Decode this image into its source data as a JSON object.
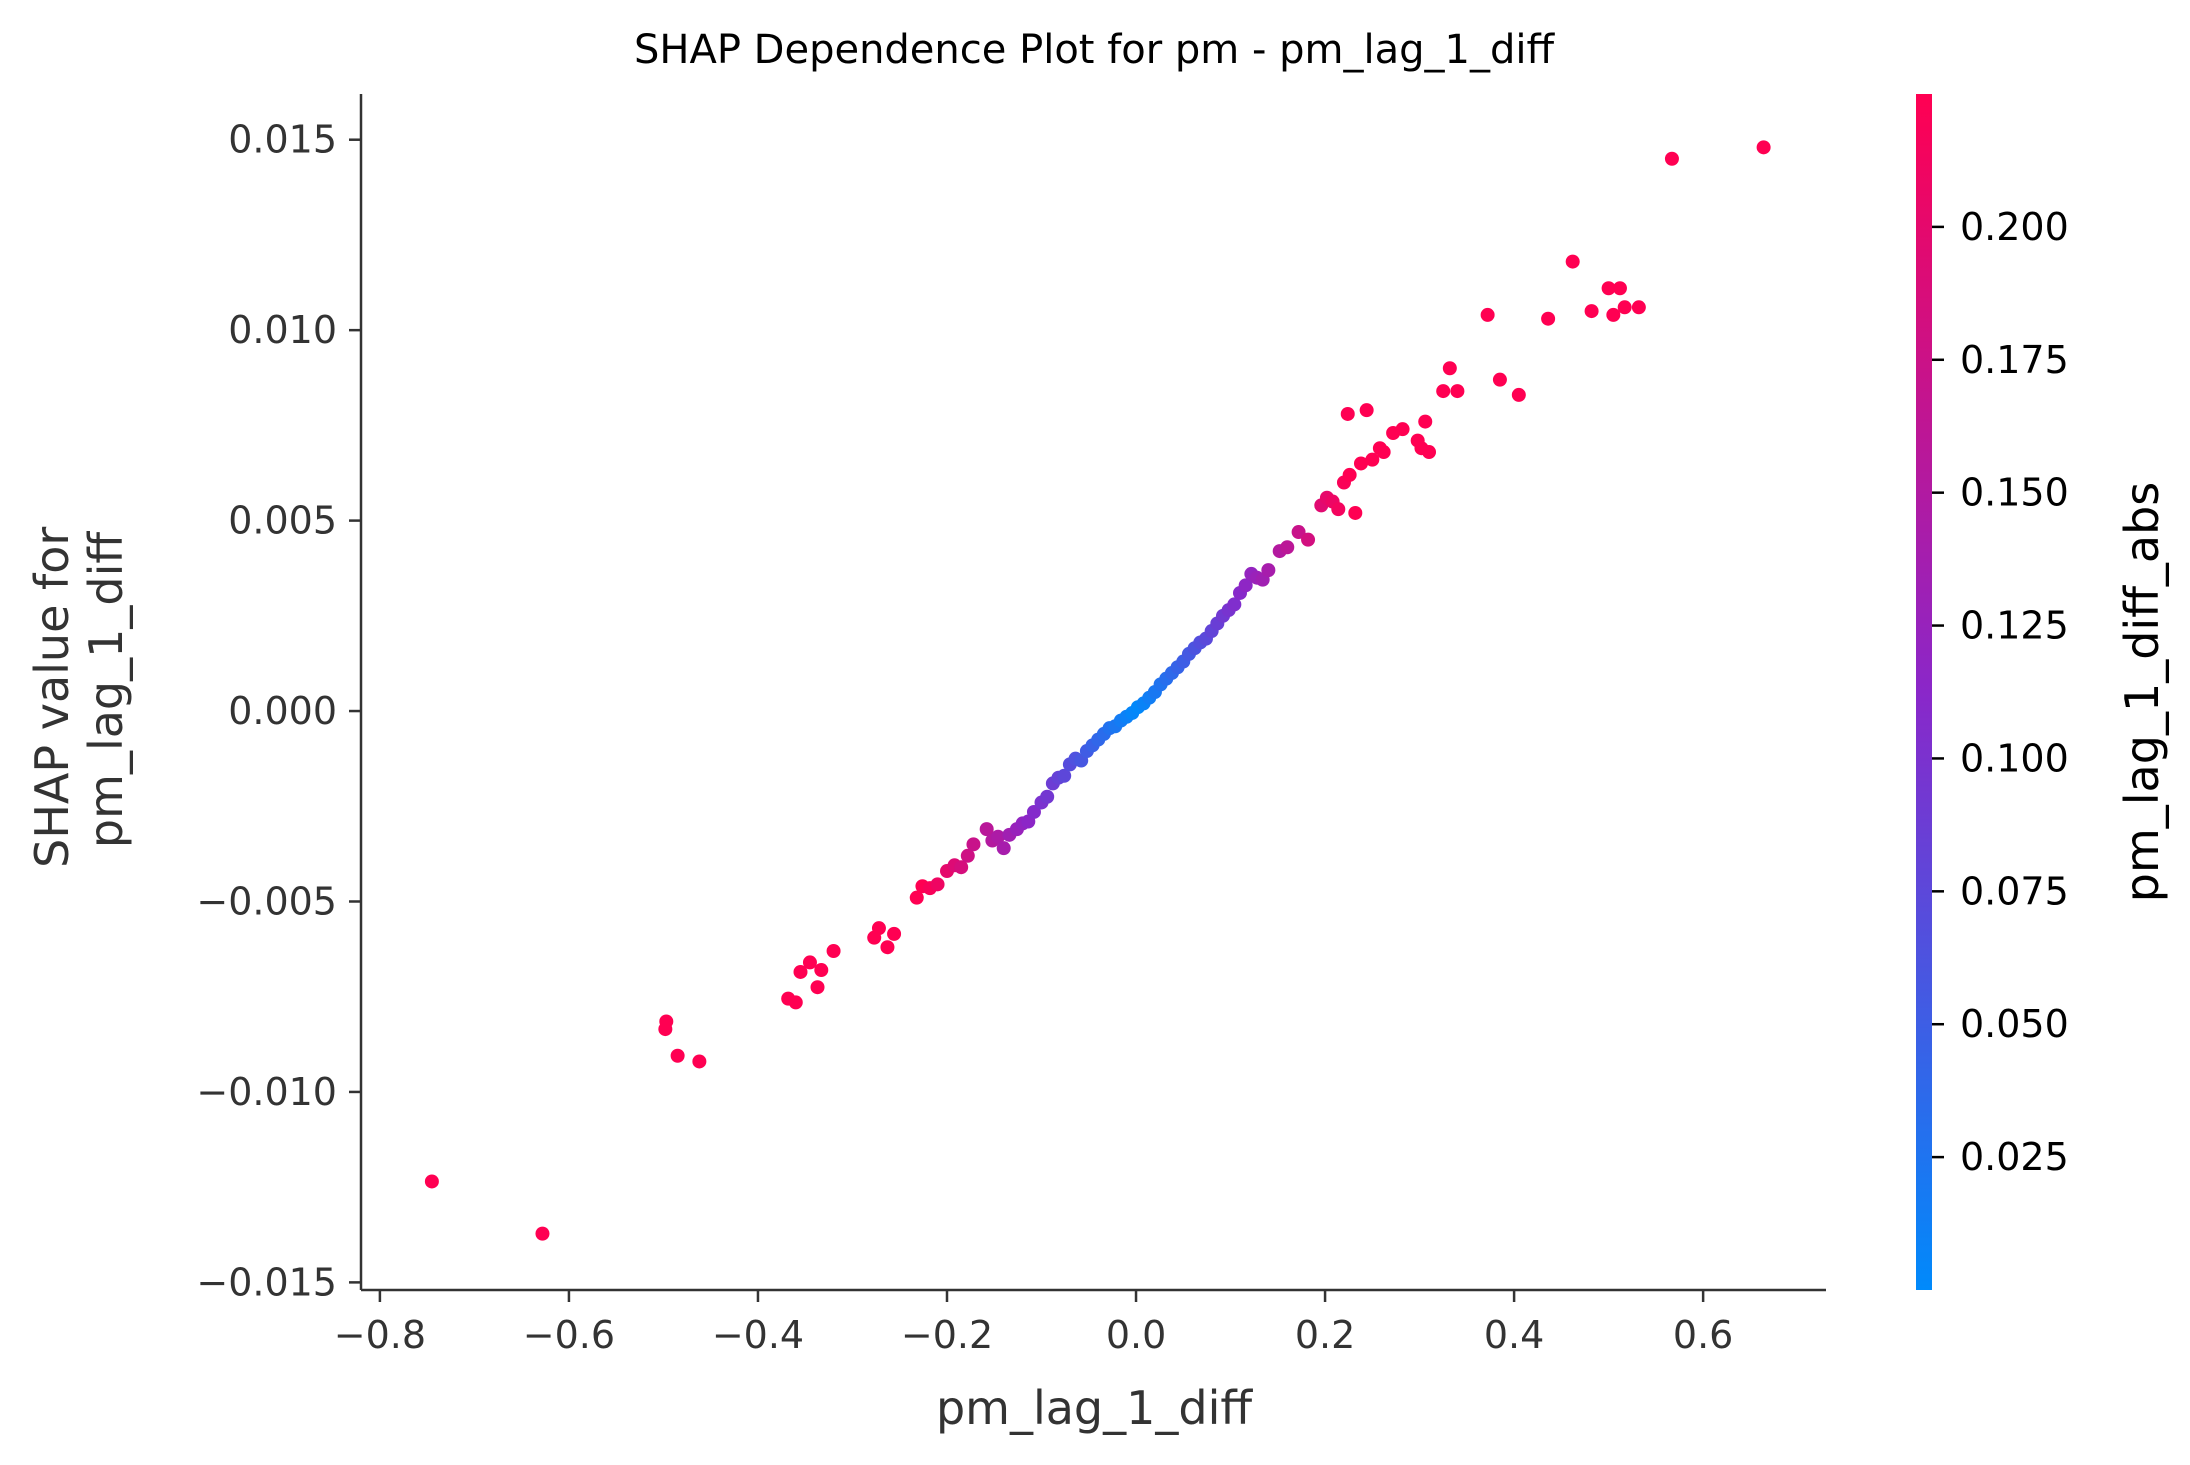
{
  "chart_data": {
    "type": "scatter",
    "title": "SHAP Dependence Plot for pm - pm_lag_1_diff",
    "xlabel": "pm_lag_1_diff",
    "ylabel_lines": [
      "SHAP value for",
      "pm_lag_1_diff"
    ],
    "xlim": [
      -0.82,
      0.73
    ],
    "ylim": [
      -0.0152,
      0.0162
    ],
    "xticks": [
      -0.8,
      -0.6,
      -0.4,
      -0.2,
      0.0,
      0.2,
      0.4,
      0.6
    ],
    "xtick_labels": [
      "−0.8",
      "−0.6",
      "−0.4",
      "−0.2",
      "0.0",
      "0.2",
      "0.4",
      "0.6"
    ],
    "yticks": [
      -0.015,
      -0.01,
      -0.005,
      0.0,
      0.005,
      0.01,
      0.015
    ],
    "ytick_labels": [
      "−0.015",
      "−0.010",
      "−0.005",
      "0.000",
      "0.005",
      "0.010",
      "0.015"
    ],
    "grid": false,
    "colorbar": {
      "label": "pm_lag_1_diff_abs",
      "range": [
        0.0,
        0.225
      ],
      "ticks": [
        0.025,
        0.05,
        0.075,
        0.1,
        0.125,
        0.15,
        0.175,
        0.2
      ],
      "tick_labels": [
        "0.025",
        "0.050",
        "0.075",
        "0.100",
        "0.125",
        "0.150",
        "0.175",
        "0.200"
      ],
      "low_color": "#008afb",
      "mid_color": "#8a27c9",
      "high_color": "#ff0052"
    },
    "points": [
      {
        "x": -0.745,
        "y": -0.01235
      },
      {
        "x": -0.628,
        "y": -0.01372
      },
      {
        "x": -0.498,
        "y": -0.00835
      },
      {
        "x": -0.497,
        "y": -0.00815
      },
      {
        "x": -0.485,
        "y": -0.00905
      },
      {
        "x": -0.462,
        "y": -0.0092
      },
      {
        "x": -0.368,
        "y": -0.00755
      },
      {
        "x": -0.36,
        "y": -0.00765
      },
      {
        "x": -0.355,
        "y": -0.00685
      },
      {
        "x": -0.345,
        "y": -0.0066
      },
      {
        "x": -0.337,
        "y": -0.00725
      },
      {
        "x": -0.333,
        "y": -0.0068
      },
      {
        "x": -0.32,
        "y": -0.0063
      },
      {
        "x": -0.277,
        "y": -0.00595
      },
      {
        "x": -0.272,
        "y": -0.0057
      },
      {
        "x": -0.263,
        "y": -0.0062
      },
      {
        "x": -0.256,
        "y": -0.00585
      },
      {
        "x": -0.232,
        "y": -0.0049
      },
      {
        "x": -0.226,
        "y": -0.0046
      },
      {
        "x": -0.218,
        "y": -0.00465
      },
      {
        "x": -0.21,
        "y": -0.00455
      },
      {
        "x": -0.2,
        "y": -0.0042
      },
      {
        "x": -0.192,
        "y": -0.00405
      },
      {
        "x": -0.185,
        "y": -0.0041
      },
      {
        "x": -0.178,
        "y": -0.0038
      },
      {
        "x": -0.172,
        "y": -0.0035
      },
      {
        "x": -0.158,
        "y": -0.0031
      },
      {
        "x": -0.152,
        "y": -0.0034
      },
      {
        "x": -0.146,
        "y": -0.0033
      },
      {
        "x": -0.14,
        "y": -0.0036
      },
      {
        "x": -0.134,
        "y": -0.00325
      },
      {
        "x": -0.126,
        "y": -0.0031
      },
      {
        "x": -0.12,
        "y": -0.00295
      },
      {
        "x": -0.114,
        "y": -0.0029
      },
      {
        "x": -0.108,
        "y": -0.00265
      },
      {
        "x": -0.1,
        "y": -0.0024
      },
      {
        "x": -0.094,
        "y": -0.00225
      },
      {
        "x": -0.088,
        "y": -0.0019
      },
      {
        "x": -0.082,
        "y": -0.00175
      },
      {
        "x": -0.076,
        "y": -0.0017
      },
      {
        "x": -0.07,
        "y": -0.0014
      },
      {
        "x": -0.064,
        "y": -0.00125
      },
      {
        "x": -0.058,
        "y": -0.0013
      },
      {
        "x": -0.052,
        "y": -0.00105
      },
      {
        "x": -0.046,
        "y": -0.0009
      },
      {
        "x": -0.04,
        "y": -0.00075
      },
      {
        "x": -0.034,
        "y": -0.0006
      },
      {
        "x": -0.028,
        "y": -0.00045
      },
      {
        "x": -0.022,
        "y": -0.0004
      },
      {
        "x": -0.016,
        "y": -0.00025
      },
      {
        "x": -0.01,
        "y": -0.00015
      },
      {
        "x": -0.004,
        "y": -5e-05
      },
      {
        "x": 0.002,
        "y": 0.0001
      },
      {
        "x": 0.008,
        "y": 0.0002
      },
      {
        "x": 0.014,
        "y": 0.00035
      },
      {
        "x": 0.02,
        "y": 0.0005
      },
      {
        "x": 0.026,
        "y": 0.0007
      },
      {
        "x": 0.032,
        "y": 0.00085
      },
      {
        "x": 0.038,
        "y": 0.001
      },
      {
        "x": 0.044,
        "y": 0.00115
      },
      {
        "x": 0.05,
        "y": 0.0013
      },
      {
        "x": 0.056,
        "y": 0.0015
      },
      {
        "x": 0.062,
        "y": 0.00165
      },
      {
        "x": 0.068,
        "y": 0.0018
      },
      {
        "x": 0.074,
        "y": 0.0019
      },
      {
        "x": 0.08,
        "y": 0.0021
      },
      {
        "x": 0.086,
        "y": 0.0023
      },
      {
        "x": 0.092,
        "y": 0.0025
      },
      {
        "x": 0.098,
        "y": 0.00265
      },
      {
        "x": 0.104,
        "y": 0.0028
      },
      {
        "x": 0.11,
        "y": 0.0031
      },
      {
        "x": 0.116,
        "y": 0.0033
      },
      {
        "x": 0.122,
        "y": 0.0036
      },
      {
        "x": 0.128,
        "y": 0.0035
      },
      {
        "x": 0.134,
        "y": 0.00345
      },
      {
        "x": 0.14,
        "y": 0.0037
      },
      {
        "x": 0.152,
        "y": 0.0042
      },
      {
        "x": 0.16,
        "y": 0.0043
      },
      {
        "x": 0.172,
        "y": 0.0047
      },
      {
        "x": 0.182,
        "y": 0.0045
      },
      {
        "x": 0.196,
        "y": 0.0054
      },
      {
        "x": 0.202,
        "y": 0.0056
      },
      {
        "x": 0.208,
        "y": 0.0055
      },
      {
        "x": 0.214,
        "y": 0.0053
      },
      {
        "x": 0.22,
        "y": 0.006
      },
      {
        "x": 0.226,
        "y": 0.0062
      },
      {
        "x": 0.232,
        "y": 0.0052
      },
      {
        "x": 0.238,
        "y": 0.0065
      },
      {
        "x": 0.25,
        "y": 0.0066
      },
      {
        "x": 0.258,
        "y": 0.0069
      },
      {
        "x": 0.262,
        "y": 0.0068
      },
      {
        "x": 0.272,
        "y": 0.0073
      },
      {
        "x": 0.282,
        "y": 0.0074
      },
      {
        "x": 0.298,
        "y": 0.0071
      },
      {
        "x": 0.302,
        "y": 0.0069
      },
      {
        "x": 0.306,
        "y": 0.0076
      },
      {
        "x": 0.31,
        "y": 0.0068
      },
      {
        "x": 0.224,
        "y": 0.0078
      },
      {
        "x": 0.244,
        "y": 0.0079
      },
      {
        "x": 0.325,
        "y": 0.0084
      },
      {
        "x": 0.332,
        "y": 0.009
      },
      {
        "x": 0.34,
        "y": 0.0084
      },
      {
        "x": 0.372,
        "y": 0.0104
      },
      {
        "x": 0.385,
        "y": 0.0087
      },
      {
        "x": 0.405,
        "y": 0.0083
      },
      {
        "x": 0.436,
        "y": 0.0103
      },
      {
        "x": 0.462,
        "y": 0.0118
      },
      {
        "x": 0.482,
        "y": 0.0105
      },
      {
        "x": 0.5,
        "y": 0.0111
      },
      {
        "x": 0.505,
        "y": 0.0104
      },
      {
        "x": 0.512,
        "y": 0.0111
      },
      {
        "x": 0.517,
        "y": 0.0106
      },
      {
        "x": 0.532,
        "y": 0.0106
      },
      {
        "x": 0.567,
        "y": 0.0145
      },
      {
        "x": 0.664,
        "y": 0.0148
      }
    ]
  }
}
